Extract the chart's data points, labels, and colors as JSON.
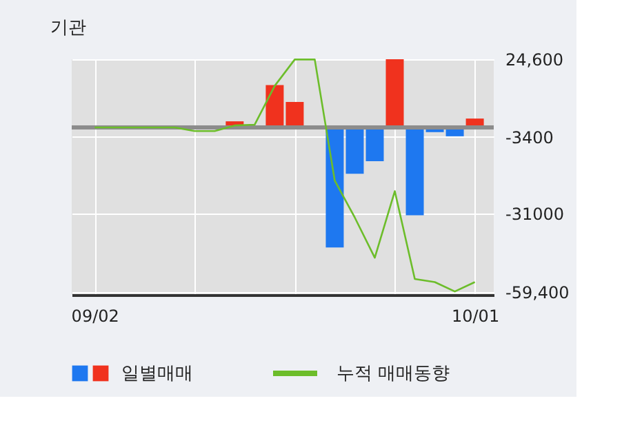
{
  "chart_data": {
    "type": "bar",
    "title": "기관",
    "categories": [
      "09/02",
      null,
      null,
      null,
      null,
      null,
      null,
      null,
      null,
      null,
      null,
      null,
      null,
      null,
      null,
      null,
      null,
      null,
      null,
      "10/01"
    ],
    "series": [
      {
        "name": "일별매매",
        "values": [
          0,
          0,
          0,
          0,
          0,
          0,
          0,
          2200,
          0,
          15300,
          9200,
          0,
          -43300,
          -16700,
          -12200,
          24600,
          -31700,
          -1700,
          -3200,
          3200
        ],
        "colors": [
          "#1e78f0",
          "#1e78f0",
          "#1e78f0",
          "#1e78f0",
          "#1e78f0",
          "#1e78f0",
          "#1e78f0",
          "#f0321e",
          "#1e78f0",
          "#f0321e",
          "#f0321e",
          "#1e78f0",
          "#1e78f0",
          "#1e78f0",
          "#1e78f0",
          "#f0321e",
          "#1e78f0",
          "#1e78f0",
          "#1e78f0",
          "#f0321e"
        ]
      },
      {
        "name": "누적 매매동향",
        "type": "line",
        "color": "#6cbd2a",
        "values": [
          0,
          0,
          0,
          0,
          0,
          -1300,
          -1300,
          700,
          1000,
          15000,
          24500,
          24500,
          -19200,
          -32500,
          -47000,
          -23000,
          -54700,
          -55800,
          -59200,
          -55800
        ]
      }
    ],
    "ylim": [
      -60400,
      24600
    ],
    "yticks": [
      {
        "value": 24600,
        "label": "24,600"
      },
      -3400,
      -31000,
      {
        "value": -59400,
        "label": "-59,400"
      }
    ],
    "ref_lines": [
      {
        "axis": "y",
        "value": 0,
        "color": "#8c8c8c"
      }
    ],
    "grid": true,
    "legend": "bottom"
  }
}
